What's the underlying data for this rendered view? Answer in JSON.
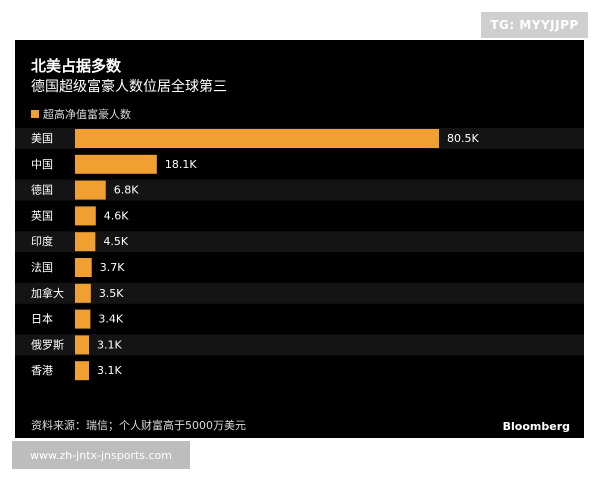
{
  "watermark_top": "TG: MYYJJPP",
  "watermark_bottom": "www.zh-jntx-jnsports.com",
  "colors": {
    "bar": "#f0a030",
    "panel": "#000000",
    "text": "#ffffff"
  },
  "chart_data": {
    "type": "bar",
    "orientation": "horizontal",
    "title": "北美占据多数",
    "subtitle": "德国超级富豪人数位居全球第三",
    "legend": "超高净值富豪人数",
    "categories": [
      "美国",
      "中国",
      "德国",
      "英国",
      "印度",
      "法国",
      "加拿大",
      "日本",
      "俄罗斯",
      "香港"
    ],
    "values": [
      80.5,
      18.1,
      6.8,
      4.6,
      4.5,
      3.7,
      3.5,
      3.4,
      3.1,
      3.1
    ],
    "value_labels": [
      "80.5K",
      "18.1K",
      "6.8K",
      "4.6K",
      "4.5K",
      "3.7K",
      "3.5K",
      "3.4K",
      "3.1K",
      "3.1K"
    ],
    "xlim": [
      0,
      80.5
    ],
    "grid": false,
    "source": "资料来源：瑞信；个人财富高于5000万美元",
    "brand": "Bloomberg"
  }
}
